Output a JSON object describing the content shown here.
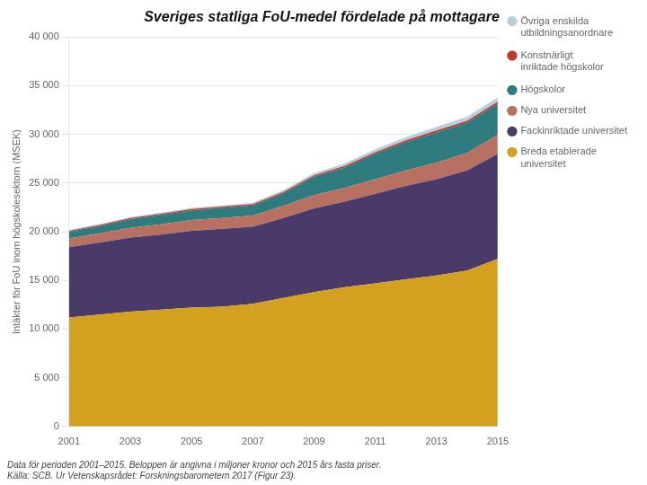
{
  "chart_data": {
    "type": "area",
    "stacked": true,
    "title": "Sveriges statliga FoU-medel fördelade på mottagare",
    "ylabel": "Intäkter för FoU inom högskolesektorn (MSEK)",
    "footnote": "Data för perioden 2001–2015. Beloppen är angivna i miljoner kronor och 2015 års fasta priser.\nKälla: SCB. Ur Vetenskapsrådet: Forskningsbarometern 2017 (Figur 23).",
    "x": [
      2001,
      2002,
      2003,
      2004,
      2005,
      2006,
      2007,
      2008,
      2009,
      2010,
      2011,
      2012,
      2013,
      2014,
      2015
    ],
    "series": [
      {
        "name": "Breda etablerade\nuniversitet",
        "color": "#D4A020",
        "values": [
          11200,
          11500,
          11800,
          12000,
          12200,
          12300,
          12600,
          13200,
          13800,
          14300,
          14700,
          15100,
          15500,
          16000,
          17200
        ]
      },
      {
        "name": "Fackinriktade universitet",
        "color": "#4A3A6A",
        "values": [
          7200,
          7400,
          7600,
          7700,
          7900,
          8000,
          7900,
          8200,
          8600,
          8800,
          9200,
          9600,
          9900,
          10300,
          10800
        ]
      },
      {
        "name": "Nya universitet",
        "color": "#B87060",
        "values": [
          900,
          950,
          1000,
          1050,
          1100,
          1100,
          1150,
          1250,
          1350,
          1400,
          1500,
          1600,
          1700,
          1800,
          1950
        ]
      },
      {
        "name": "Högskolor",
        "color": "#2E7B80",
        "values": [
          700,
          730,
          900,
          980,
          1000,
          1050,
          1050,
          1300,
          1900,
          2100,
          2600,
          2900,
          3100,
          3100,
          3200
        ]
      },
      {
        "name": "Konstnärligt\ninriktade högskolor",
        "color": "#C0392B",
        "values": [
          100,
          105,
          110,
          115,
          120,
          125,
          130,
          140,
          150,
          160,
          170,
          180,
          190,
          200,
          210
        ]
      },
      {
        "name": "Övriga enskilda\nutbildningsanordnare",
        "color": "#B8CEDD",
        "values": [
          80,
          90,
          100,
          110,
          120,
          130,
          140,
          180,
          220,
          260,
          300,
          340,
          370,
          400,
          430
        ]
      }
    ],
    "xlim": [
      2001,
      2015
    ],
    "xticks": [
      2001,
      2003,
      2005,
      2007,
      2009,
      2011,
      2013,
      2015
    ],
    "ylim": [
      0,
      40000
    ],
    "yticks": [
      0,
      {
        "value": 5000,
        "label": "5 000"
      },
      {
        "value": 10000,
        "label": "10 000"
      },
      {
        "value": 15000,
        "label": "15 000"
      },
      {
        "value": 20000,
        "label": "20 000"
      },
      {
        "value": 25000,
        "label": "25 000"
      },
      {
        "value": 30000,
        "label": "30 000"
      },
      {
        "value": 35000,
        "label": "35 000"
      },
      {
        "value": 40000,
        "label": "40 000"
      }
    ],
    "grid": "y",
    "legend": "right"
  }
}
